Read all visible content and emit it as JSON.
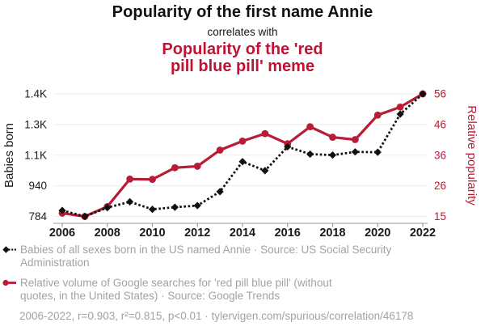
{
  "header": {
    "title": "Popularity of the first name Annie",
    "connector": "correlates with",
    "red_title": "Popularity of the 'red\npill blue pill' meme"
  },
  "colors": {
    "title_red": "#c01232",
    "series_red": "#b91c35",
    "series_black": "#111111",
    "grid": "#ececec",
    "axis_line": "#999999",
    "tick_text_black": "#1a1a1a",
    "legend_gray": "#a2a2a2"
  },
  "chart_data": {
    "type": "line",
    "title": "Popularity of the first name Annie correlates with Popularity of the 'red pill blue pill' meme",
    "x": [
      2006,
      2007,
      2008,
      2009,
      2010,
      2011,
      2012,
      2013,
      2014,
      2015,
      2016,
      2017,
      2018,
      2019,
      2020,
      2021,
      2022
    ],
    "x_tick_labels": [
      "2006",
      "2008",
      "2010",
      "2012",
      "2014",
      "2016",
      "2018",
      "2020",
      "2022"
    ],
    "grid": true,
    "legend_position": "bottom",
    "left_axis": {
      "label": "Babies born",
      "min": 784,
      "max": 1437,
      "tick_labels_top_to_bottom": [
        "1.4K",
        "1.3K",
        "1.1K",
        "940",
        "784"
      ]
    },
    "right_axis": {
      "label": "Relative popularity",
      "min": 15,
      "max": 56,
      "tick_labels_top_to_bottom": [
        "56",
        "46",
        "36",
        "26",
        "15"
      ]
    },
    "series": [
      {
        "name": "Babies of all sexes born in the US named Annie",
        "axis": "left",
        "color": "#111111",
        "line_style": "dotted",
        "marker": "diamond",
        "values": [
          816,
          784,
          831,
          862,
          822,
          833,
          842,
          916,
          1076,
          1028,
          1155,
          1116,
          1111,
          1128,
          1126,
          1329,
          1437
        ]
      },
      {
        "name": "Relative volume of Google searches for 'red pill blue pill'",
        "axis": "right",
        "color": "#b91c35",
        "line_style": "solid",
        "marker": "circle",
        "values": [
          16.1,
          15,
          18.3,
          27.5,
          27.4,
          31.3,
          31.8,
          37.2,
          40.2,
          42.7,
          39.3,
          45,
          41.5,
          40.7,
          48.9,
          51.6,
          56
        ]
      }
    ]
  },
  "legend": [
    {
      "label": "Babies of all sexes born in the US named Annie · Source: US Social Security\nAdministration"
    },
    {
      "label": "Relative volume of Google searches for 'red pill blue pill' (without\nquotes, in the United States) · Source: Google Trends"
    }
  ],
  "footer": {
    "text": "2006-2022, r=0.903, r²=0.815, p<0.01 · tylervigen.com/spurious/correlation/46178"
  }
}
